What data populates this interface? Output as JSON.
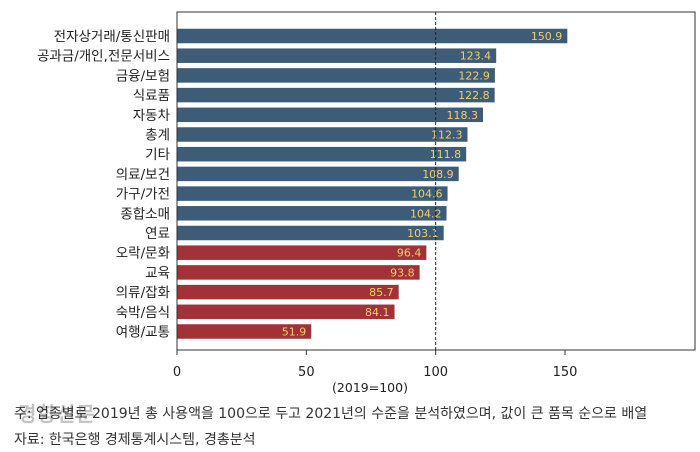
{
  "chart_data": {
    "type": "bar",
    "orientation": "horizontal",
    "categories": [
      "전자상거래/통신판매",
      "공과금/개인,전문서비스",
      "금융/보험",
      "식료품",
      "자동차",
      "총계",
      "기타",
      "의료/보건",
      "가구/가전",
      "종합소매",
      "연료",
      "오락/문화",
      "교육",
      "의류/잡화",
      "숙박/음식",
      "여행/교통"
    ],
    "values": [
      150.9,
      123.4,
      122.9,
      122.8,
      118.3,
      112.3,
      111.8,
      108.9,
      104.6,
      104.2,
      103.1,
      96.4,
      93.8,
      85.7,
      84.1,
      51.9
    ],
    "data_labels": [
      "150.9",
      "123.4",
      "122.9",
      "122.8",
      "118.3",
      "112.3",
      "111.8",
      "108.9",
      "104.6",
      "104.2",
      "103.1",
      "96.4",
      "93.8",
      "85.7",
      "84.1",
      "51.9"
    ],
    "xlim": [
      0,
      155
    ],
    "x_ticks": [
      0,
      50,
      100,
      150
    ],
    "xlabel": "(2019=100)",
    "reference_line": 100,
    "colors": {
      "above": "#3d5c78",
      "below": "#a03238",
      "label": "#f2cf6a"
    }
  },
  "notes": {
    "note1": "주: 업종별로 2019년 총 사용액을 100으로 두고 2021년의 수준을 분석하였으며, 값이 큰 품목 순으로 배열",
    "note2": "자료: 한국은행 경제통계시스템, 경총분석"
  },
  "watermark": "경향신문"
}
